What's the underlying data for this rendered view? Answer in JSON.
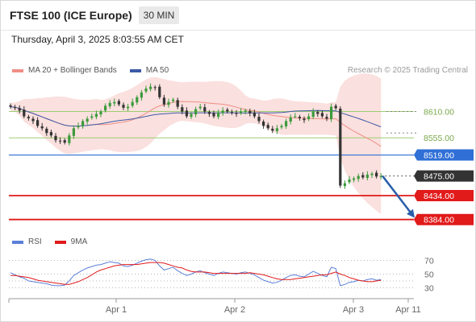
{
  "header": {
    "title": "FTSE 100 (ICE Europe)",
    "timeframe": "30 MIN",
    "datetime": "Thursday, April 3, 2025 8:03:55 AM CET",
    "credit": "Research © 2025 Trading Central"
  },
  "colors": {
    "bull": "#3c9b3c",
    "bear": "#333333",
    "band_fill": "#f6c6c2",
    "ma20": "#f08e86",
    "ma50": "#3d5aa8",
    "support_resistance_green": "#9ccc72",
    "pivot_blue": "#2f6fd6",
    "support_red": "#e11a1a",
    "current_price": "#333333",
    "rsi": "#5b7fd9",
    "rsi_ma": "#e11a1a",
    "forecast_arrow": "#2a5eaa"
  },
  "legend_main": [
    {
      "label": "MA 20 + Bollinger Bands",
      "color": "#f08e86"
    },
    {
      "label": "MA 50",
      "color": "#3d5aa8"
    }
  ],
  "legend_rsi": [
    {
      "label": "RSI",
      "color": "#5b7fd9"
    },
    {
      "label": "9MA",
      "color": "#e11a1a"
    }
  ],
  "chart_data": [
    {
      "type": "candlestick",
      "title": "FTSE 100 (ICE Europe)",
      "timeframe": "30 MIN",
      "ylim": [
        8370,
        8680
      ],
      "x_ticks": [
        "Apr 1",
        "Apr 2",
        "Apr 3",
        "Apr 11"
      ],
      "levels": [
        {
          "label": "8610.00",
          "value": 8610,
          "kind": "resistance"
        },
        {
          "label": "8555.00",
          "value": 8555,
          "kind": "resistance"
        },
        {
          "label": "8519.00",
          "value": 8519,
          "kind": "pivot"
        },
        {
          "label": "8475.00",
          "value": 8475,
          "kind": "last"
        },
        {
          "label": "8434.00",
          "value": 8434,
          "kind": "support"
        },
        {
          "label": "8384.00",
          "value": 8384,
          "kind": "support"
        }
      ],
      "forecast": {
        "from": 8475,
        "to": 8384,
        "direction": "down"
      },
      "series": [
        {
          "name": "MA 20 + Bollinger Bands"
        },
        {
          "name": "MA 50"
        }
      ],
      "close": [
        8620,
        8618,
        8612,
        8600,
        8596,
        8590,
        8580,
        8575,
        8565,
        8560,
        8550,
        8548,
        8545,
        8560,
        8575,
        8580,
        8590,
        8595,
        8600,
        8605,
        8610,
        8622,
        8628,
        8630,
        8625,
        8618,
        8620,
        8630,
        8640,
        8650,
        8658,
        8662,
        8660,
        8640,
        8625,
        8630,
        8635,
        8620,
        8610,
        8600,
        8605,
        8615,
        8620,
        8610,
        8605,
        8600,
        8608,
        8612,
        8610,
        8608,
        8605,
        8610,
        8612,
        8606,
        8600,
        8590,
        8580,
        8575,
        8570,
        8575,
        8580,
        8590,
        8598,
        8600,
        8596,
        8592,
        8600,
        8610,
        8605,
        8600,
        8595,
        8620,
        8617,
        8455,
        8460,
        8468,
        8470,
        8475,
        8472,
        8478,
        8480,
        8474,
        8475
      ]
    },
    {
      "type": "line",
      "title": "RSI",
      "ylim": [
        20,
        80
      ],
      "y_ticks": [
        70,
        50,
        30
      ],
      "series": [
        {
          "name": "RSI",
          "values": [
            52,
            49,
            46,
            44,
            40,
            39,
            38,
            37,
            36,
            34,
            33,
            33,
            34,
            40,
            48,
            52,
            56,
            59,
            61,
            63,
            64,
            66,
            68,
            67,
            66,
            62,
            61,
            63,
            66,
            69,
            71,
            72,
            70,
            62,
            56,
            58,
            60,
            55,
            51,
            48,
            50,
            53,
            55,
            52,
            50,
            48,
            51,
            53,
            52,
            51,
            50,
            52,
            53,
            51,
            49,
            45,
            41,
            39,
            37,
            38,
            41,
            45,
            48,
            49,
            47,
            46,
            50,
            54,
            51,
            48,
            46,
            60,
            58,
            33,
            35,
            38,
            39,
            41,
            40,
            42,
            43,
            41,
            42
          ]
        },
        {
          "name": "9MA",
          "values": [
            48,
            48,
            47,
            46,
            45,
            43,
            41,
            40,
            39,
            38,
            37,
            36,
            35,
            35,
            37,
            39,
            42,
            45,
            49,
            53,
            56,
            58,
            60,
            62,
            63,
            64,
            64,
            64,
            64,
            65,
            66,
            67,
            67,
            67,
            66,
            64,
            62,
            60,
            59,
            56,
            54,
            53,
            53,
            53,
            52,
            51,
            51,
            51,
            51,
            51,
            51,
            51,
            51,
            52,
            51,
            50,
            49,
            47,
            45,
            43,
            42,
            42,
            42,
            43,
            44,
            45,
            46,
            47,
            48,
            49,
            49,
            51,
            53,
            50,
            48,
            45,
            43,
            41,
            40,
            39,
            39,
            40,
            41
          ]
        }
      ]
    }
  ]
}
